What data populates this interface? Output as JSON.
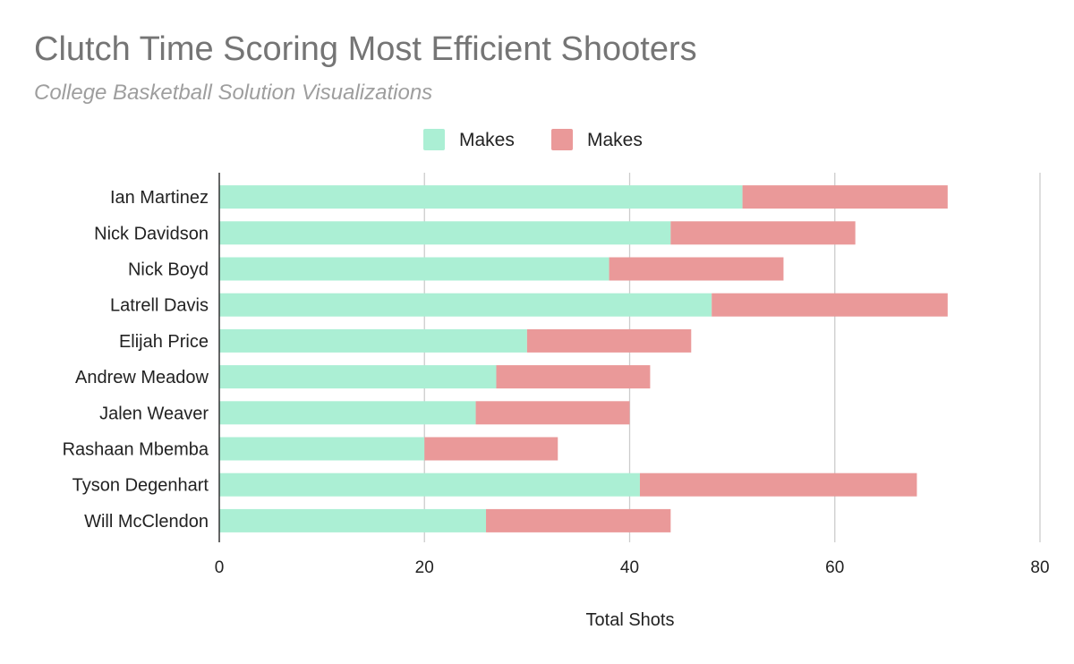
{
  "chart_data": {
    "type": "bar",
    "orientation": "horizontal",
    "stacked": true,
    "title": "Clutch Time Scoring Most Efficient Shooters",
    "subtitle": "College Basketball Solution Visualizations",
    "xlabel": "Total Shots",
    "ylabel": "",
    "xlim": [
      0,
      80
    ],
    "x_ticks": [
      "0",
      "20",
      "40",
      "60",
      "80"
    ],
    "grid": true,
    "legend_position": "top",
    "categories": [
      "Ian Martinez",
      "Nick Davidson",
      "Nick Boyd",
      "Latrell Davis",
      "Elijah Price",
      "Andrew Meadow",
      "Jalen Weaver",
      "Rashaan Mbemba",
      "Tyson Degenhart",
      "Will McClendon"
    ],
    "series": [
      {
        "name": "Makes",
        "color": "#abefd4",
        "values": [
          51,
          44,
          38,
          48,
          30,
          27,
          25,
          20,
          41,
          26
        ]
      },
      {
        "name": "Makes",
        "color": "#ea9999",
        "values": [
          20,
          18,
          17,
          23,
          16,
          15,
          15,
          13,
          27,
          18
        ]
      }
    ]
  }
}
